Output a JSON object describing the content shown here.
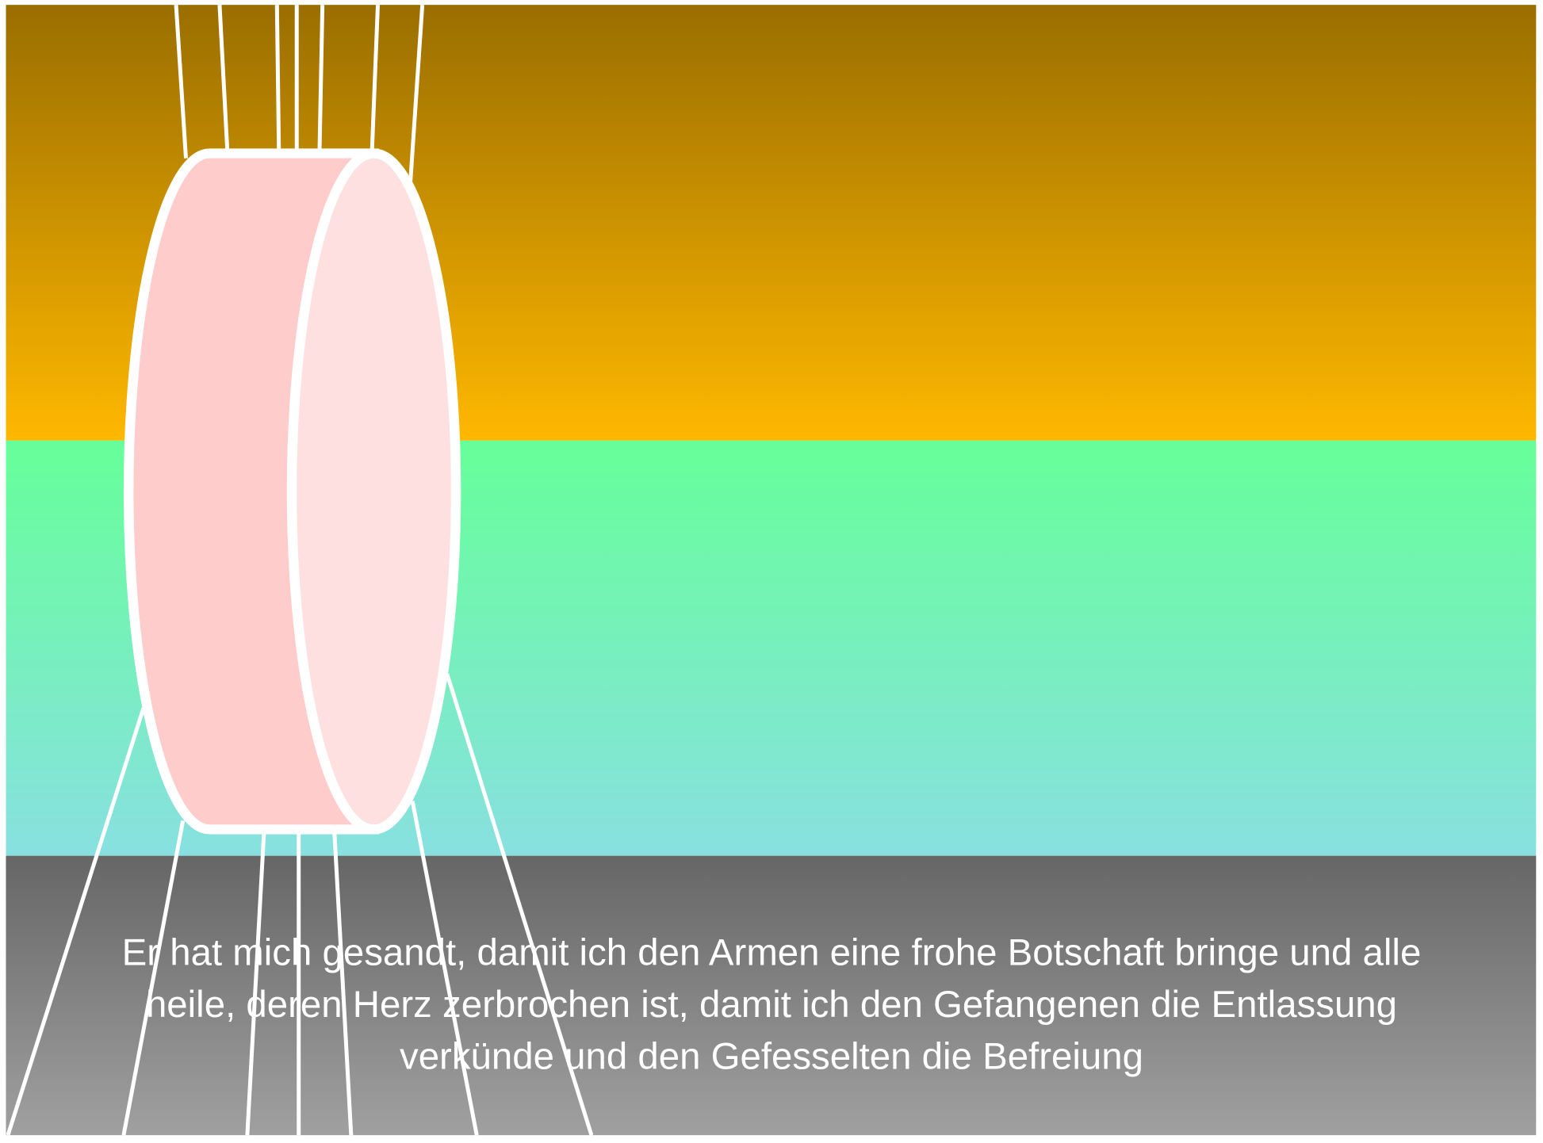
{
  "caption": {
    "lines": [
      "Er hat mich gesandt, damit ich den Armen eine frohe Botschaft bringe und alle",
      "heile, deren Herz zerbrochen ist, damit ich den Gefangenen die Entlassung",
      "verkünde und den Gefesselten die Befreiung"
    ]
  }
}
